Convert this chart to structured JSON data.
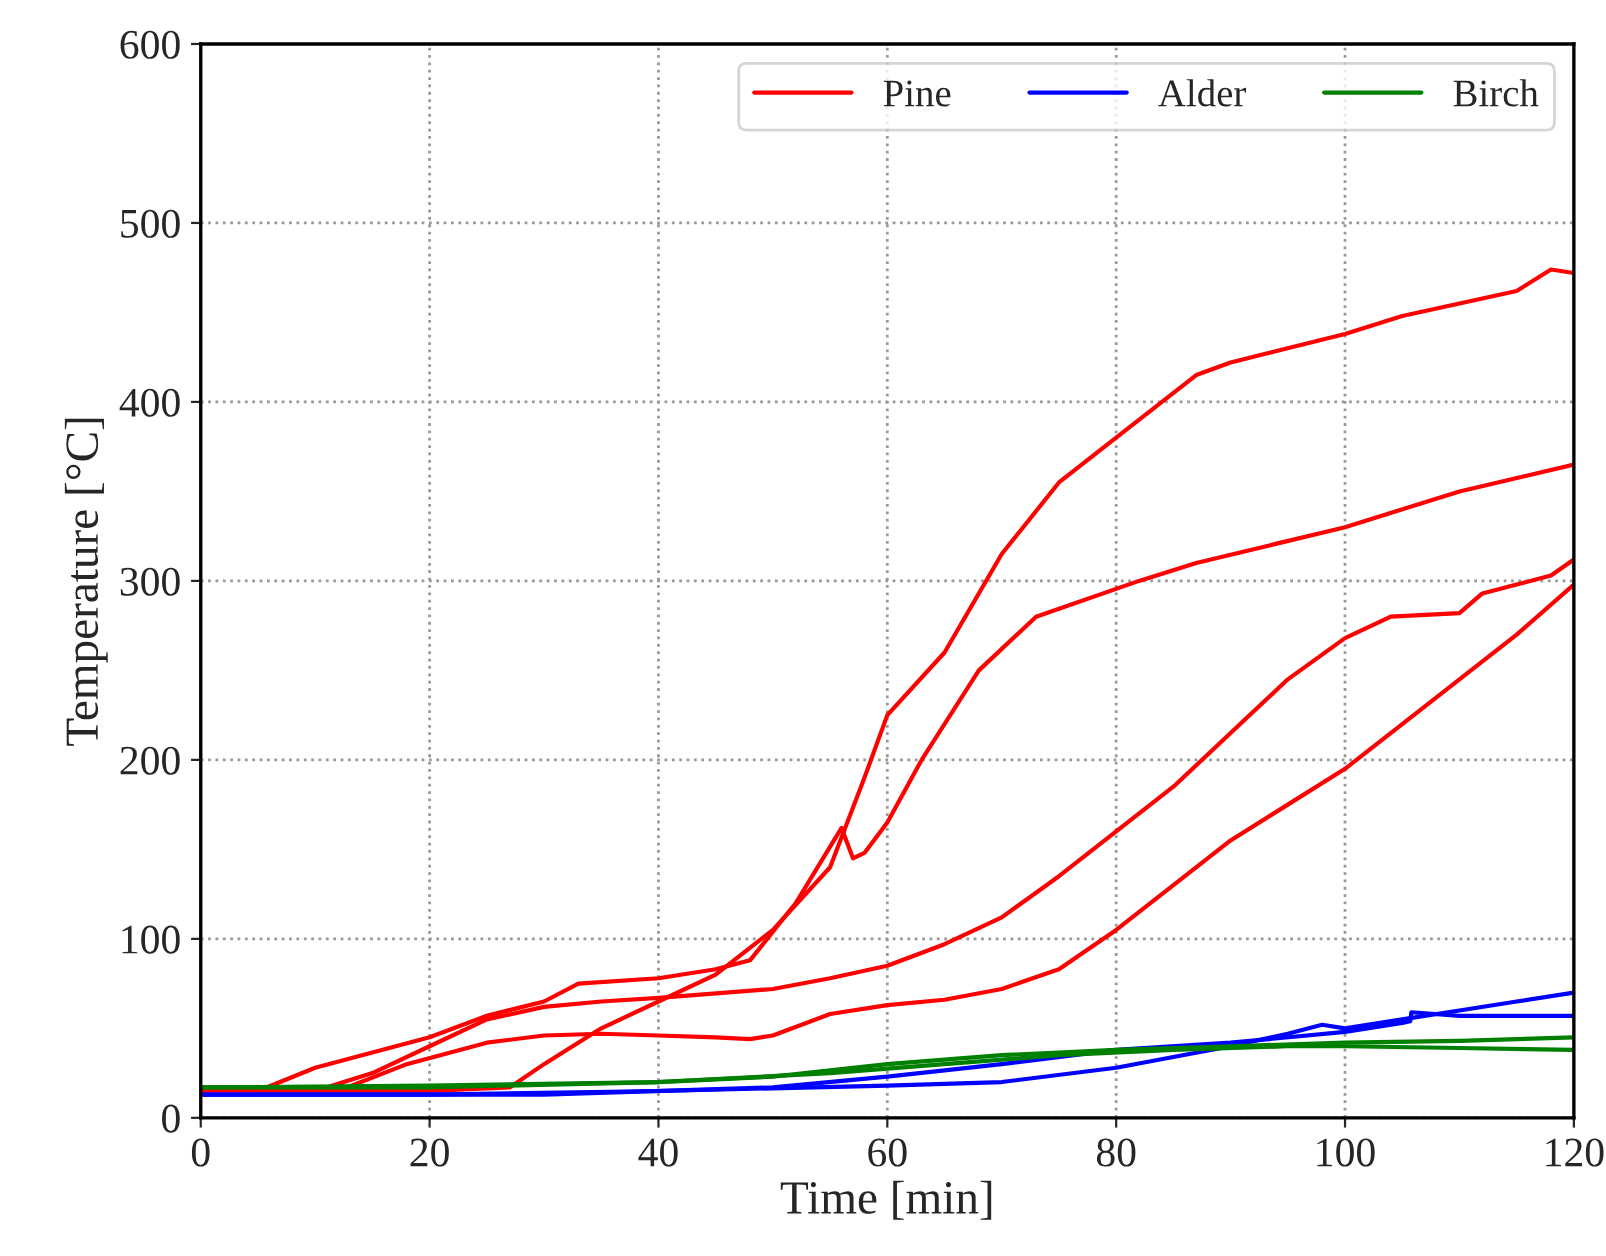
{
  "chart_data": {
    "type": "line",
    "xlabel": "Time [min]",
    "ylabel": "Temperature [°C]",
    "xlim": [
      0,
      120
    ],
    "ylim": [
      0,
      600
    ],
    "xticks": [
      0,
      20,
      40,
      60,
      80,
      100,
      120
    ],
    "yticks": [
      0,
      100,
      200,
      300,
      400,
      500,
      600
    ],
    "grid": true,
    "legend": "top right",
    "line_style": "solid",
    "marker": "none",
    "series": [
      {
        "name": "Pine",
        "color": "#ff0000",
        "x": [
          0,
          20,
          27,
          30,
          35,
          40,
          45,
          50,
          55,
          58,
          60,
          65,
          70,
          75,
          80,
          84,
          87,
          90,
          100,
          105,
          110,
          115,
          118,
          120
        ],
        "values": [
          15,
          15,
          17,
          30,
          50,
          65,
          80,
          105,
          140,
          190,
          225,
          260,
          315,
          355,
          380,
          400,
          415,
          422,
          438,
          448,
          455,
          462,
          474,
          472
        ]
      },
      {
        "color": "#ff0000",
        "x": [
          0,
          5,
          10,
          20,
          25,
          30,
          33,
          40,
          45,
          48,
          52,
          56,
          57,
          58,
          60,
          63,
          68,
          73,
          82,
          87,
          100,
          110,
          120
        ],
        "values": [
          15,
          15,
          28,
          45,
          57,
          65,
          75,
          78,
          83,
          88,
          120,
          162,
          145,
          148,
          165,
          200,
          250,
          280,
          300,
          310,
          330,
          350,
          365
        ]
      },
      {
        "color": "#ff0000",
        "x": [
          0,
          10,
          15,
          20,
          25,
          30,
          35,
          40,
          50,
          55,
          60,
          65,
          70,
          75,
          80,
          85,
          90,
          95,
          100,
          104,
          110,
          112,
          115,
          118,
          120
        ],
        "values": [
          15,
          15,
          25,
          40,
          55,
          62,
          65,
          67,
          72,
          78,
          85,
          97,
          112,
          135,
          160,
          185,
          215,
          245,
          268,
          280,
          282,
          293,
          298,
          303,
          312
        ]
      },
      {
        "color": "#ff0000",
        "x": [
          0,
          12,
          18,
          25,
          30,
          35,
          40,
          45,
          48,
          50,
          55,
          60,
          65,
          70,
          75,
          80,
          85,
          90,
          95,
          100,
          105,
          110,
          115,
          120
        ],
        "values": [
          15,
          15,
          30,
          42,
          46,
          47,
          46,
          45,
          44,
          46,
          58,
          63,
          66,
          72,
          83,
          105,
          130,
          155,
          175,
          195,
          220,
          245,
          270,
          298
        ]
      },
      {
        "name": "Alder",
        "color": "#0000ff",
        "x": [
          0,
          20,
          40,
          60,
          70,
          80,
          90,
          95,
          98,
          100,
          105,
          110,
          115,
          120
        ],
        "values": [
          13,
          13,
          15,
          18,
          20,
          28,
          40,
          47,
          52,
          50,
          55,
          60,
          65,
          70
        ]
      },
      {
        "color": "#0000ff",
        "x": [
          0,
          30,
          50,
          60,
          70,
          80,
          90,
          100,
          105,
          105.7,
          105.8,
          110,
          120
        ],
        "values": [
          13,
          13,
          17,
          23,
          30,
          38,
          42,
          48,
          53,
          54,
          59,
          57,
          57
        ]
      },
      {
        "name": "Birch",
        "color": "#008000",
        "x": [
          0,
          20,
          40,
          50,
          60,
          70,
          80,
          90,
          100,
          110,
          120
        ],
        "values": [
          17,
          18,
          20,
          23,
          30,
          35,
          38,
          40,
          42,
          43,
          45
        ]
      },
      {
        "color": "#008000",
        "x": [
          0,
          20,
          40,
          55,
          65,
          75,
          85,
          95,
          100,
          110,
          120
        ],
        "values": [
          17,
          17,
          20,
          25,
          30,
          35,
          38,
          40,
          40,
          39,
          38
        ]
      }
    ]
  }
}
